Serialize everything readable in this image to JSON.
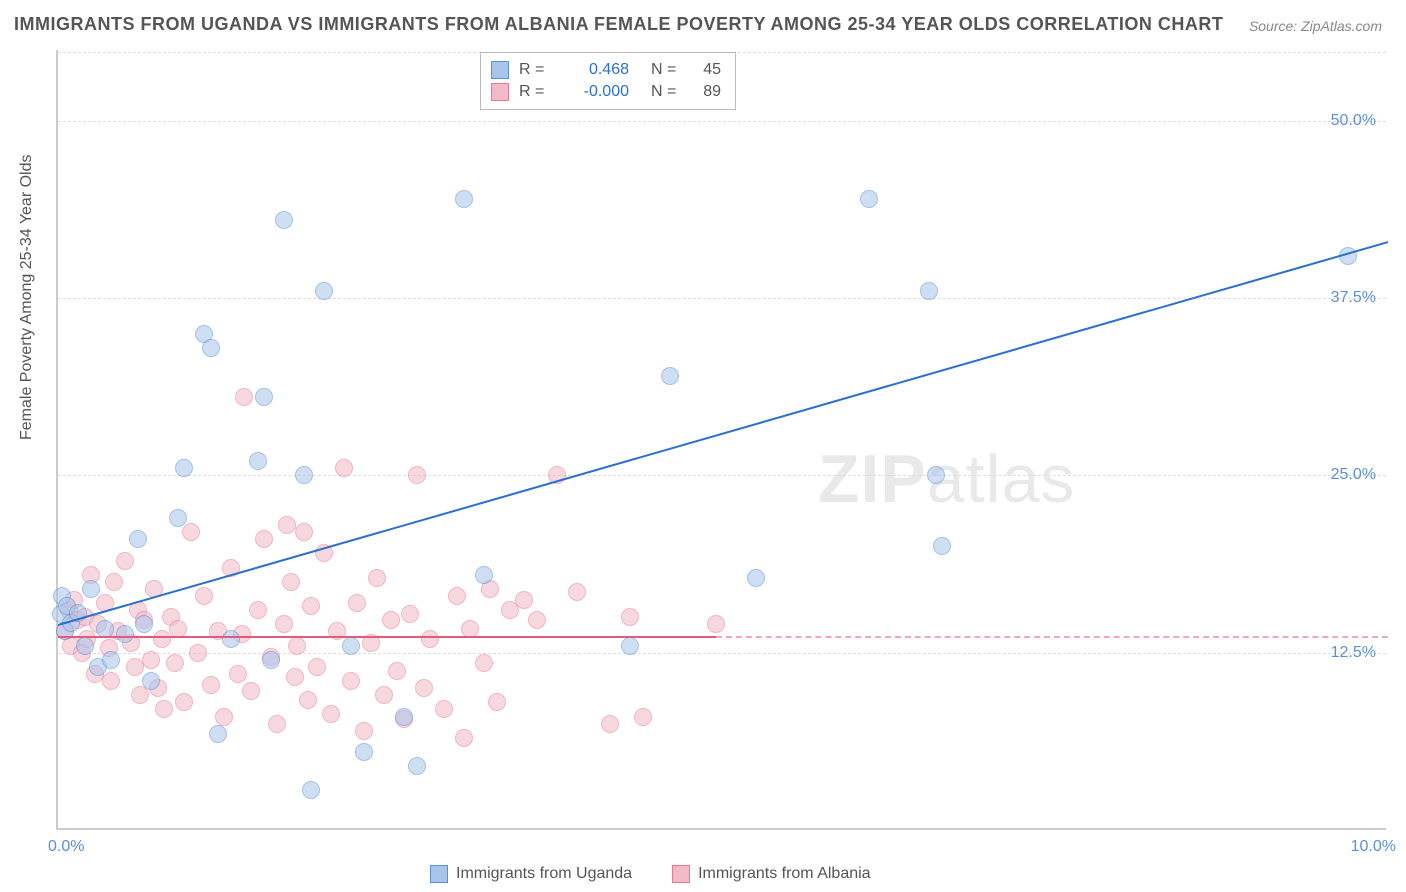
{
  "title": "IMMIGRANTS FROM UGANDA VS IMMIGRANTS FROM ALBANIA FEMALE POVERTY AMONG 25-34 YEAR OLDS CORRELATION CHART",
  "source": "Source: ZipAtlas.com",
  "ylabel": "Female Poverty Among 25-34 Year Olds",
  "watermark_bold": "ZIP",
  "watermark_rest": "atlas",
  "chart": {
    "type": "scatter",
    "xlim": [
      0,
      10
    ],
    "ylim": [
      0,
      55
    ],
    "xtick_labels": [
      "0.0%",
      "10.0%"
    ],
    "ytick_values": [
      12.5,
      25.0,
      37.5,
      50.0
    ],
    "ytick_labels": [
      "12.5%",
      "25.0%",
      "37.5%",
      "50.0%"
    ],
    "grid_color": "#dddddd",
    "axis_color": "#cccccc",
    "background_color": "#ffffff",
    "tick_font_color": "#5b8fd6",
    "tick_fontsize": 16,
    "title_fontsize": 18,
    "title_color": "#555555",
    "dot_radius": 9,
    "dot_opacity": 0.55
  },
  "series": [
    {
      "name": "Immigrants from Uganda",
      "color_fill": "#a7c5ec",
      "color_stroke": "#5b8fd6",
      "R": "0.468",
      "N": "45",
      "trend": {
        "x1": 0.0,
        "y1": 14.5,
        "x2": 10.0,
        "y2": 41.5,
        "color": "#2b6fd0",
        "width": 2
      },
      "points": [
        [
          0.02,
          15.2
        ],
        [
          0.03,
          16.5
        ],
        [
          0.05,
          14.0
        ],
        [
          0.07,
          15.8
        ],
        [
          0.1,
          14.6
        ],
        [
          0.15,
          15.3
        ],
        [
          0.2,
          13.0
        ],
        [
          0.25,
          17.0
        ],
        [
          0.3,
          11.5
        ],
        [
          0.35,
          14.2
        ],
        [
          0.4,
          12.0
        ],
        [
          0.5,
          13.8
        ],
        [
          0.6,
          20.5
        ],
        [
          0.65,
          14.5
        ],
        [
          0.7,
          10.5
        ],
        [
          0.9,
          22.0
        ],
        [
          0.95,
          25.5
        ],
        [
          1.1,
          35.0
        ],
        [
          1.15,
          34.0
        ],
        [
          1.2,
          6.8
        ],
        [
          1.3,
          13.5
        ],
        [
          1.5,
          26.0
        ],
        [
          1.55,
          30.5
        ],
        [
          1.6,
          12.0
        ],
        [
          1.7,
          43.0
        ],
        [
          1.85,
          25.0
        ],
        [
          1.9,
          2.8
        ],
        [
          2.0,
          38.0
        ],
        [
          2.2,
          13.0
        ],
        [
          2.3,
          5.5
        ],
        [
          2.6,
          8.0
        ],
        [
          2.7,
          4.5
        ],
        [
          3.05,
          44.5
        ],
        [
          3.2,
          18.0
        ],
        [
          4.3,
          13.0
        ],
        [
          4.6,
          32.0
        ],
        [
          5.25,
          17.8
        ],
        [
          6.55,
          38.0
        ],
        [
          6.1,
          44.5
        ],
        [
          6.6,
          25.0
        ],
        [
          6.65,
          20.0
        ],
        [
          9.7,
          40.5
        ]
      ]
    },
    {
      "name": "Immigrants from Albania",
      "color_fill": "#f4b9c6",
      "color_stroke": "#e77a95",
      "R": "-0.000",
      "N": "89",
      "trend": {
        "x1": 0.0,
        "y1": 13.7,
        "x2": 4.95,
        "y2": 13.7,
        "color": "#e35a7c",
        "width": 2
      },
      "trend_dash": {
        "x1": 4.95,
        "y1": 13.7,
        "x2": 10.0,
        "y2": 13.7,
        "color": "#f0a8b8"
      },
      "points": [
        [
          0.05,
          14.0
        ],
        [
          0.08,
          15.5
        ],
        [
          0.1,
          13.0
        ],
        [
          0.12,
          16.2
        ],
        [
          0.15,
          14.8
        ],
        [
          0.18,
          12.5
        ],
        [
          0.2,
          15.0
        ],
        [
          0.22,
          13.5
        ],
        [
          0.25,
          18.0
        ],
        [
          0.28,
          11.0
        ],
        [
          0.3,
          14.5
        ],
        [
          0.35,
          16.0
        ],
        [
          0.38,
          12.8
        ],
        [
          0.4,
          10.5
        ],
        [
          0.42,
          17.5
        ],
        [
          0.45,
          14.0
        ],
        [
          0.5,
          19.0
        ],
        [
          0.55,
          13.2
        ],
        [
          0.58,
          11.5
        ],
        [
          0.6,
          15.5
        ],
        [
          0.62,
          9.5
        ],
        [
          0.65,
          14.8
        ],
        [
          0.7,
          12.0
        ],
        [
          0.72,
          17.0
        ],
        [
          0.75,
          10.0
        ],
        [
          0.78,
          13.5
        ],
        [
          0.8,
          8.5
        ],
        [
          0.85,
          15.0
        ],
        [
          0.88,
          11.8
        ],
        [
          0.9,
          14.2
        ],
        [
          0.95,
          9.0
        ],
        [
          1.0,
          21.0
        ],
        [
          1.05,
          12.5
        ],
        [
          1.1,
          16.5
        ],
        [
          1.15,
          10.2
        ],
        [
          1.2,
          14.0
        ],
        [
          1.25,
          8.0
        ],
        [
          1.3,
          18.5
        ],
        [
          1.35,
          11.0
        ],
        [
          1.38,
          13.8
        ],
        [
          1.4,
          30.5
        ],
        [
          1.45,
          9.8
        ],
        [
          1.5,
          15.5
        ],
        [
          1.55,
          20.5
        ],
        [
          1.6,
          12.2
        ],
        [
          1.65,
          7.5
        ],
        [
          1.7,
          14.5
        ],
        [
          1.72,
          21.5
        ],
        [
          1.75,
          17.5
        ],
        [
          1.78,
          10.8
        ],
        [
          1.8,
          13.0
        ],
        [
          1.85,
          21.0
        ],
        [
          1.88,
          9.2
        ],
        [
          1.9,
          15.8
        ],
        [
          1.95,
          11.5
        ],
        [
          2.0,
          19.5
        ],
        [
          2.05,
          8.2
        ],
        [
          2.1,
          14.0
        ],
        [
          2.15,
          25.5
        ],
        [
          2.2,
          10.5
        ],
        [
          2.25,
          16.0
        ],
        [
          2.3,
          7.0
        ],
        [
          2.35,
          13.2
        ],
        [
          2.4,
          17.8
        ],
        [
          2.45,
          9.5
        ],
        [
          2.5,
          14.8
        ],
        [
          2.55,
          11.2
        ],
        [
          2.6,
          7.8
        ],
        [
          2.65,
          15.2
        ],
        [
          2.7,
          25.0
        ],
        [
          2.75,
          10.0
        ],
        [
          2.8,
          13.5
        ],
        [
          2.9,
          8.5
        ],
        [
          3.0,
          16.5
        ],
        [
          3.05,
          6.5
        ],
        [
          3.1,
          14.2
        ],
        [
          3.2,
          11.8
        ],
        [
          3.25,
          17.0
        ],
        [
          3.3,
          9.0
        ],
        [
          3.4,
          15.5
        ],
        [
          3.5,
          16.2
        ],
        [
          3.6,
          14.8
        ],
        [
          3.75,
          25.0
        ],
        [
          3.9,
          16.8
        ],
        [
          4.15,
          7.5
        ],
        [
          4.3,
          15.0
        ],
        [
          4.4,
          8.0
        ],
        [
          4.95,
          14.5
        ]
      ]
    }
  ],
  "legend_top": {
    "r_label": "R =",
    "n_label": "N ="
  },
  "legend_bottom": {
    "items": [
      "Immigrants from Uganda",
      "Immigrants from Albania"
    ]
  }
}
